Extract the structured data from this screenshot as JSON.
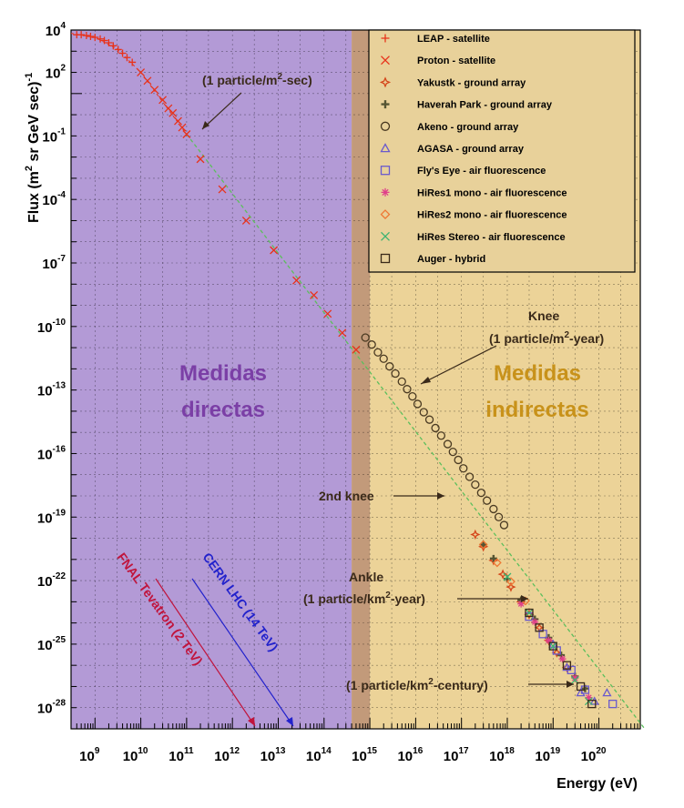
{
  "chart_data": {
    "type": "scatter",
    "title": "",
    "xlabel": "Energy (eV)",
    "ylabel_main": "Flux (m",
    "ylabel_sup1": "2",
    "ylabel_mid": " sr GeV sec)",
    "ylabel_sup2": "-1",
    "x_scale": "log",
    "y_scale": "log",
    "xlim": [
      300000000.0,
      8e+20
    ],
    "ylim": [
      1e-29,
      10000.0
    ],
    "x_tick_labels": [
      {
        "base": "10",
        "exp": "9",
        "value": 1000000000.0
      },
      {
        "base": "10",
        "exp": "10",
        "value": 10000000000.0
      },
      {
        "base": "10",
        "exp": "11",
        "value": 100000000000.0
      },
      {
        "base": "10",
        "exp": "12",
        "value": 1000000000000.0
      },
      {
        "base": "10",
        "exp": "13",
        "value": 10000000000000.0
      },
      {
        "base": "10",
        "exp": "14",
        "value": 100000000000000.0
      },
      {
        "base": "10",
        "exp": "15",
        "value": 1000000000000000.0
      },
      {
        "base": "10",
        "exp": "16",
        "value": 1e+16
      },
      {
        "base": "10",
        "exp": "17",
        "value": 1e+17
      },
      {
        "base": "10",
        "exp": "18",
        "value": 1e+18
      },
      {
        "base": "10",
        "exp": "19",
        "value": 1e+19
      },
      {
        "base": "10",
        "exp": "20",
        "value": 1e+20
      }
    ],
    "y_tick_labels": [
      {
        "base": "10",
        "exp": "4",
        "value": 10000.0
      },
      {
        "base": "10",
        "exp": "2",
        "value": 100.0
      },
      {
        "base": "10",
        "exp": "-1",
        "value": 0.1
      },
      {
        "base": "10",
        "exp": "-4",
        "value": 0.0001
      },
      {
        "base": "10",
        "exp": "-7",
        "value": 1e-07
      },
      {
        "base": "10",
        "exp": "-10",
        "value": 1e-10
      },
      {
        "base": "10",
        "exp": "-13",
        "value": 1e-13
      },
      {
        "base": "10",
        "exp": "-16",
        "value": 1e-16
      },
      {
        "base": "10",
        "exp": "-19",
        "value": 1e-19
      },
      {
        "base": "10",
        "exp": "-22",
        "value": 1e-22
      },
      {
        "base": "10",
        "exp": "-25",
        "value": 1e-25
      },
      {
        "base": "10",
        "exp": "-28",
        "value": 1e-28
      }
    ],
    "grid": true,
    "legend_position": "top-right",
    "regions": [
      {
        "label_line1": "Medidas",
        "label_line2": "directas",
        "x_range": [
          300000000.0,
          400000000000000.0
        ],
        "color": "#b39ad6",
        "text_color": "#7b3fa6"
      },
      {
        "label_line1": "Medidas",
        "label_line2": "indirectas",
        "x_range": [
          1000000000000000.0,
          8e+20
        ],
        "color": "#ecd398",
        "text_color": "#c8921a"
      },
      {
        "label_line1": "",
        "label_line2": "",
        "x_range": [
          400000000000000.0,
          1000000000000000.0
        ],
        "color": "#c29a7a",
        "text_color": ""
      }
    ],
    "series": [
      {
        "name": "LEAP - satellite",
        "marker": "plus",
        "color": "#e8321a",
        "points": [
          [
            400000000.0,
            6000
          ],
          [
            500000000.0,
            6000
          ],
          [
            650000000.0,
            5500
          ],
          [
            800000000.0,
            5000
          ],
          [
            1000000000.0,
            4500
          ],
          [
            1300000000.0,
            3800
          ],
          [
            1600000000.0,
            3200
          ],
          [
            2000000000.0,
            2500
          ],
          [
            2500000000.0,
            1800
          ],
          [
            3200000000.0,
            1200
          ],
          [
            4000000000.0,
            800
          ],
          [
            5000000000.0,
            500
          ],
          [
            6500000000.0,
            300
          ]
        ]
      },
      {
        "name": "Proton - satellite",
        "marker": "x",
        "color": "#e8321a",
        "points": [
          [
            10000000000.0,
            100
          ],
          [
            14000000000.0,
            40
          ],
          [
            20000000000.0,
            15
          ],
          [
            30000000000.0,
            5
          ],
          [
            40000000000.0,
            2
          ],
          [
            50000000000.0,
            1.2
          ],
          [
            65000000000.0,
            0.5
          ],
          [
            80000000000.0,
            0.25
          ],
          [
            100000000000.0,
            0.12
          ],
          [
            200000000000.0,
            0.008
          ],
          [
            600000000000.0,
            0.0003
          ],
          [
            2000000000000.0,
            1e-05
          ],
          [
            8000000000000.0,
            4e-07
          ],
          [
            25000000000000.0,
            1.5e-08
          ],
          [
            60000000000000.0,
            3e-09
          ],
          [
            120000000000000.0,
            4e-10
          ],
          [
            250000000000000.0,
            5e-11
          ],
          [
            500000000000000.0,
            8e-12
          ]
        ]
      },
      {
        "name": "Yakustk - ground array",
        "marker": "star",
        "color": "#d4451a",
        "points": [
          [
            2e+17,
            1.5e-20
          ],
          [
            3e+17,
            4e-21
          ],
          [
            5e+17,
            9e-22
          ],
          [
            8e+17,
            2e-22
          ],
          [
            1.2e+18,
            5e-23
          ],
          [
            2e+18,
            1e-23
          ],
          [
            3e+18,
            2.5e-24
          ],
          [
            5e+18,
            6e-25
          ],
          [
            8e+18,
            1.5e-25
          ],
          [
            1.2e+19,
            4e-26
          ],
          [
            2e+19,
            8e-27
          ]
        ]
      },
      {
        "name": "Haverah Park - ground array",
        "marker": "cross",
        "color": "#555533",
        "points": [
          [
            3e+17,
            5e-21
          ],
          [
            5e+17,
            1.1e-21
          ],
          [
            1e+18,
            1.2e-22
          ],
          [
            2e+18,
            1.2e-23
          ],
          [
            4e+18,
            1.5e-24
          ],
          [
            8e+18,
            2e-25
          ],
          [
            1.5e+19,
            3e-26
          ],
          [
            3e+19,
            3e-27
          ],
          [
            5e+19,
            8e-28
          ]
        ]
      },
      {
        "name": "Akeno - ground array",
        "marker": "circle",
        "color": "#4a3a22",
        "points": [
          [
            800000000000000.0,
            3e-11
          ],
          [
            1100000000000000.0,
            1.4e-11
          ],
          [
            1500000000000000.0,
            6e-12
          ],
          [
            2000000000000000.0,
            3e-12
          ],
          [
            2700000000000000.0,
            1.3e-12
          ],
          [
            3600000000000000.0,
            6e-13
          ],
          [
            5000000000000000.0,
            2.5e-13
          ],
          [
            6500000000000000.0,
            1.1e-13
          ],
          [
            8500000000000000.0,
            5e-14
          ],
          [
            1.1e+16,
            2.2e-14
          ],
          [
            1.5e+16,
            9e-15
          ],
          [
            2e+16,
            4e-15
          ],
          [
            2.7e+16,
            1.6e-15
          ],
          [
            3.6e+16,
            7e-16
          ],
          [
            5e+16,
            2.8e-16
          ],
          [
            6.5e+16,
            1.2e-16
          ],
          [
            8.5e+16,
            5e-17
          ],
          [
            1.1e+17,
            2e-17
          ],
          [
            1.5e+17,
            8e-18
          ],
          [
            2e+17,
            3.4e-18
          ],
          [
            2.7e+17,
            1.4e-18
          ],
          [
            3.6e+17,
            6e-19
          ],
          [
            5e+17,
            2.4e-19
          ],
          [
            6.5e+17,
            1e-19
          ],
          [
            8.5e+17,
            4.2e-20
          ]
        ]
      },
      {
        "name": "AGASA - ground array",
        "marker": "triangle",
        "color": "#6a5acd",
        "points": [
          [
            1e+19,
            1e-25
          ],
          [
            2e+19,
            8e-27
          ],
          [
            4e+19,
            5e-28
          ],
          [
            8e+19,
            2e-28
          ],
          [
            1.5e+20,
            5e-28
          ]
        ]
      },
      {
        "name": "Fly's Eye - air fluorescence",
        "marker": "square",
        "color": "#6a5acd",
        "points": [
          [
            3e+18,
            2e-24
          ],
          [
            6e+18,
            3e-25
          ],
          [
            1.2e+19,
            5e-26
          ],
          [
            2.5e+19,
            6e-27
          ],
          [
            5e+19,
            7e-28
          ],
          [
            2e+20,
            1.5e-28
          ]
        ]
      },
      {
        "name": "HiRes1 mono - air fluorescence",
        "marker": "asterisk",
        "color": "#e0408a",
        "points": [
          [
            2e+18,
            8e-24
          ],
          [
            4e+18,
            1.1e-24
          ],
          [
            8e+18,
            1.5e-25
          ],
          [
            1.6e+19,
            2e-26
          ],
          [
            3e+19,
            2.5e-27
          ],
          [
            6e+19,
            3e-28
          ]
        ]
      },
      {
        "name": "HiRes2 mono - air fluorescence",
        "marker": "diamond",
        "color": "#ee7733",
        "points": [
          [
            3e+17,
            5e-21
          ],
          [
            6e+17,
            7e-22
          ],
          [
            1.2e+18,
            9e-23
          ],
          [
            2.5e+18,
            1.1e-23
          ]
        ]
      },
      {
        "name": "HiRes Stereo - air fluorescence",
        "marker": "x",
        "color": "#3cb371",
        "points": [
          [
            1e+18,
            1.5e-22
          ],
          [
            3e+18,
            3e-24
          ],
          [
            1e+19,
            8e-26
          ],
          [
            3e+19,
            2e-27
          ],
          [
            6e+19,
            2e-28
          ]
        ]
      },
      {
        "name": "Auger - hybrid",
        "marker": "square",
        "color": "#3a2a1a",
        "points": [
          [
            3e+18,
            3e-24
          ],
          [
            5e+18,
            6e-25
          ],
          [
            1e+19,
            8e-26
          ],
          [
            2e+19,
            1e-26
          ],
          [
            4e+19,
            1e-27
          ],
          [
            7e+19,
            1.5e-28
          ]
        ]
      }
    ],
    "reference_line": {
      "description": "",
      "color": "#5cbf5c",
      "points": [
        [
          100000000000.0,
          0.12
        ],
        [
          1e+21,
          1e-29
        ]
      ]
    },
    "annotations": [
      {
        "id": "one-per-m2-sec",
        "text_main": "(1 particle/m",
        "text_sup": "2",
        "text_end": "-sec)",
        "target": [
          100000000000.0,
          0.12
        ]
      },
      {
        "id": "knee",
        "text_line1": "Knee",
        "text_main": "(1 particle/m",
        "text_sup": "2",
        "text_end": "-year)",
        "target": [
          5000000000000000.0,
          1e-13
        ]
      },
      {
        "id": "second-knee",
        "text": "2nd knee",
        "target": [
          3e+16,
          3e-19
        ]
      },
      {
        "id": "ankle",
        "text_line1": "Ankle",
        "text_main": "(1 particle/km",
        "text_sup": "2",
        "text_end": "-year)",
        "target": [
          5e+18,
          3e-23
        ]
      },
      {
        "id": "one-per-km2-century",
        "text_main": "(1 particle/km",
        "text_sup": "2",
        "text_end": "-century)",
        "target": [
          5e+19,
          5e-28
        ]
      },
      {
        "id": "fnal",
        "text": "FNAL Tevatron (2 TeV)",
        "color": "#c0143c",
        "target": [
          2000000000000.0,
          1e-29
        ]
      },
      {
        "id": "cern",
        "text": "CERN LHC (14 TeV)",
        "color": "#2222cc",
        "target": [
          14000000000000.0,
          1e-29
        ]
      }
    ]
  }
}
